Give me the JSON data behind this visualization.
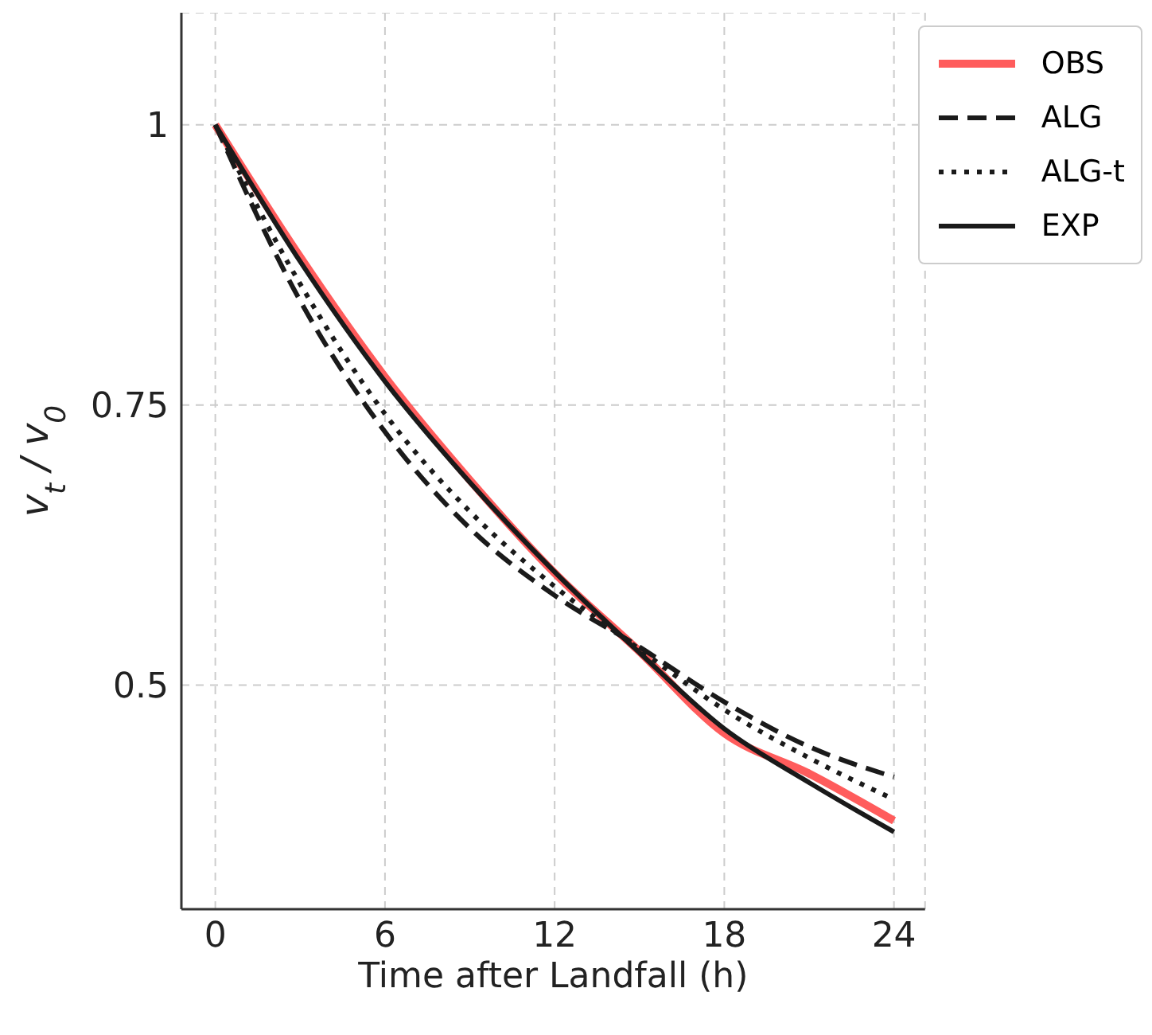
{
  "chart_data": {
    "type": "line",
    "xlabel": "Time after Landfall (h)",
    "ylabel": "v$_{t}$ / v$_{0}$",
    "x": [
      0,
      3,
      6,
      9,
      12,
      15,
      18,
      21,
      24
    ],
    "series": [
      {
        "name": "OBS",
        "color": "#ff5c5c",
        "line_style": "solid",
        "values": [
          1,
          0.882,
          0.775,
          0.683,
          0.6,
          0.53,
          0.457,
          0.421,
          0.379
        ]
      },
      {
        "name": "ALG",
        "color": "#1a1a1a",
        "line_style": "dashed",
        "values": [
          1,
          0.843,
          0.726,
          0.64,
          0.58,
          0.534,
          0.485,
          0.445,
          0.418
        ]
      },
      {
        "name": "ALG-t",
        "color": "#1a1a1a",
        "line_style": "dotted",
        "values": [
          1,
          0.858,
          0.742,
          0.655,
          0.588,
          0.532,
          0.478,
          0.435,
          0.398
        ]
      },
      {
        "name": "EXP",
        "color": "#1a1a1a",
        "line_style": "solid",
        "values": [
          1,
          0.878,
          0.771,
          0.681,
          0.601,
          0.529,
          0.461,
          0.413,
          0.369
        ]
      }
    ],
    "xlim": [
      -1.2,
      25.1
    ],
    "xticks": [
      0,
      6,
      12,
      18,
      24
    ],
    "ylim": [
      0.3,
      1.1
    ],
    "yticks": [
      0.5,
      {
        "value": 0.75,
        "label": "0.75"
      },
      1
    ],
    "grid": true,
    "legend": "top right",
    "marker": "none"
  }
}
